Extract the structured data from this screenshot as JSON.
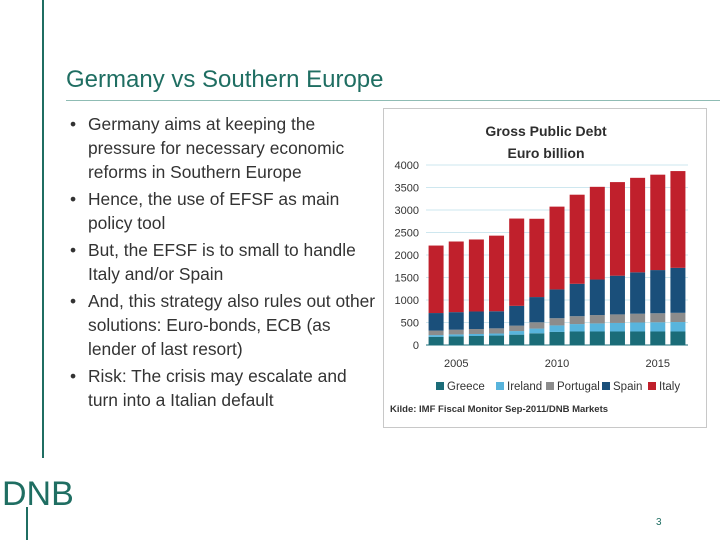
{
  "slide": {
    "title": "Germany vs Southern Europe",
    "bullets": [
      "Germany aims at keeping the pressure for necessary economic reforms in Southern Europe",
      "Hence, the use of EFSF as main policy tool",
      "But, the EFSF is to small to handle Italy and/or Spain",
      "And, this strategy also rules out other solutions: Euro-bonds, ECB (as lender of last resort)",
      "Risk: The crisis may escalate and turn into a Italian default"
    ],
    "logo": "DNB",
    "page_number": "3"
  },
  "chart_data": {
    "type": "bar",
    "stacked": true,
    "title": "Gross Public Debt",
    "subtitle": "Euro billion",
    "source": "Kilde: IMF Fiscal Monitor Sep-2011/DNB Markets",
    "x": [
      2004,
      2005,
      2006,
      2007,
      2008,
      2009,
      2010,
      2011,
      2012,
      2013,
      2014,
      2015,
      2016
    ],
    "x_ticks": [
      2005,
      2010,
      2015
    ],
    "y_ticks": [
      0,
      500,
      1000,
      1500,
      2000,
      2500,
      3000,
      3500,
      4000
    ],
    "ylim": [
      0,
      4000
    ],
    "legend_position": "bottom",
    "series": [
      {
        "name": "Greece",
        "color": "#1b6c78",
        "values": [
          180,
          190,
          200,
          210,
          230,
          260,
          290,
          300,
          300,
          300,
          300,
          300,
          300
        ]
      },
      {
        "name": "Ireland",
        "color": "#58b4dc",
        "values": [
          40,
          45,
          45,
          45,
          80,
          105,
          145,
          165,
          180,
          190,
          200,
          205,
          210
        ]
      },
      {
        "name": "Portugal",
        "color": "#8c8c8c",
        "values": [
          100,
          105,
          110,
          115,
          120,
          140,
          160,
          175,
          185,
          190,
          195,
          200,
          205
        ]
      },
      {
        "name": "Spain",
        "color": "#1a4f7a",
        "values": [
          390,
          390,
          390,
          380,
          440,
          560,
          640,
          720,
          790,
          860,
          920,
          960,
          1000
        ]
      },
      {
        "name": "Italy",
        "color": "#c0202c",
        "values": [
          1500,
          1570,
          1600,
          1680,
          1940,
          1740,
          1840,
          1980,
          2060,
          2080,
          2100,
          2120,
          2150
        ]
      }
    ],
    "colors": {
      "gridline": "#9ecfe0",
      "axis_text": "#333333",
      "title_text": "#2e2e2e"
    }
  }
}
